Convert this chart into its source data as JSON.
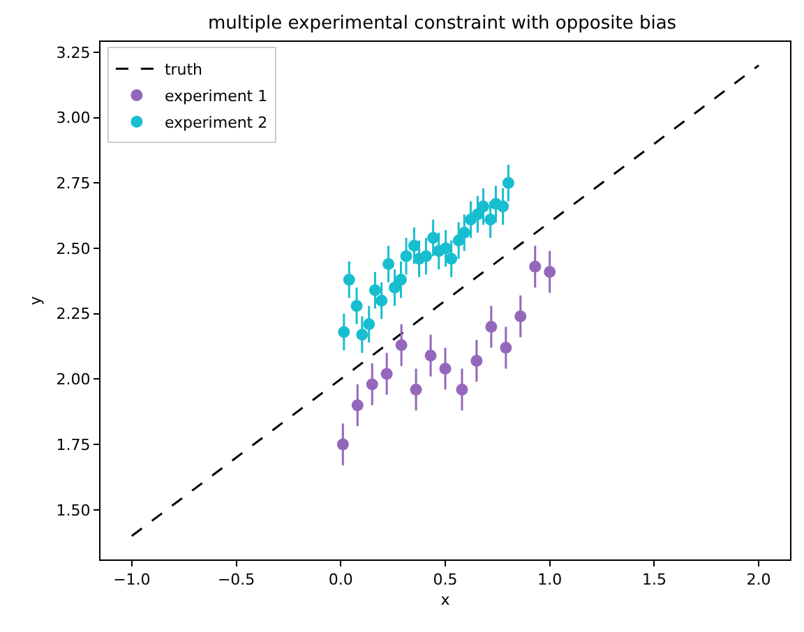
{
  "chart_data": {
    "type": "scatter",
    "title": "multiple experimental constraint with opposite bias",
    "xlabel": "x",
    "ylabel": "y",
    "xlim": [
      -1.15,
      2.15
    ],
    "ylim": [
      1.31,
      3.29
    ],
    "xticks": [
      {
        "value": -1.0,
        "label": "−1.0"
      },
      {
        "value": -0.5,
        "label": "−0.5"
      },
      {
        "value": 0.0,
        "label": "0.0"
      },
      {
        "value": 0.5,
        "label": "0.5"
      },
      {
        "value": 1.0,
        "label": "1.0"
      },
      {
        "value": 1.5,
        "label": "1.5"
      },
      {
        "value": 2.0,
        "label": "2.0"
      }
    ],
    "yticks": [
      {
        "value": 1.5,
        "label": "1.50"
      },
      {
        "value": 1.75,
        "label": "1.75"
      },
      {
        "value": 2.0,
        "label": "2.00"
      },
      {
        "value": 2.25,
        "label": "2.25"
      },
      {
        "value": 2.5,
        "label": "2.50"
      },
      {
        "value": 2.75,
        "label": "2.75"
      },
      {
        "value": 3.0,
        "label": "3.00"
      },
      {
        "value": 3.25,
        "label": "3.25"
      }
    ],
    "grid": false,
    "legend": "top left",
    "marker": "circle",
    "series": [
      {
        "name": "truth",
        "type": "line",
        "color": "#000000",
        "line_style": "dashed",
        "marker": "none",
        "x": [
          -1.0,
          2.0
        ],
        "values": [
          1.4,
          3.2
        ]
      },
      {
        "name": "experiment 1",
        "color": "#9467bd",
        "x": [
          0.01,
          0.08,
          0.15,
          0.22,
          0.29,
          0.36,
          0.43,
          0.5,
          0.58,
          0.65,
          0.72,
          0.79,
          0.86,
          0.93,
          1.0
        ],
        "values": [
          1.75,
          1.9,
          1.98,
          2.02,
          2.13,
          1.96,
          2.09,
          2.04,
          1.96,
          2.07,
          2.2,
          2.12,
          2.24,
          2.43,
          2.41
        ],
        "errors": [
          0.08,
          0.08,
          0.08,
          0.08,
          0.08,
          0.08,
          0.08,
          0.08,
          0.08,
          0.08,
          0.08,
          0.08,
          0.08,
          0.08,
          0.08
        ]
      },
      {
        "name": "experiment 2",
        "color": "#17becf",
        "x": [
          0.015,
          0.04,
          0.076,
          0.102,
          0.135,
          0.164,
          0.195,
          0.228,
          0.258,
          0.288,
          0.313,
          0.351,
          0.375,
          0.408,
          0.442,
          0.469,
          0.502,
          0.529,
          0.564,
          0.591,
          0.622,
          0.655,
          0.682,
          0.716,
          0.742,
          0.776,
          0.802
        ],
        "values": [
          2.18,
          2.38,
          2.28,
          2.17,
          2.21,
          2.34,
          2.3,
          2.44,
          2.35,
          2.38,
          2.47,
          2.51,
          2.46,
          2.47,
          2.54,
          2.49,
          2.5,
          2.46,
          2.53,
          2.56,
          2.61,
          2.63,
          2.66,
          2.61,
          2.67,
          2.66,
          2.75
        ],
        "errors": [
          0.07,
          0.07,
          0.07,
          0.07,
          0.07,
          0.07,
          0.07,
          0.07,
          0.07,
          0.07,
          0.07,
          0.07,
          0.07,
          0.07,
          0.07,
          0.07,
          0.07,
          0.07,
          0.07,
          0.07,
          0.07,
          0.07,
          0.07,
          0.07,
          0.07,
          0.07,
          0.07
        ]
      }
    ]
  }
}
